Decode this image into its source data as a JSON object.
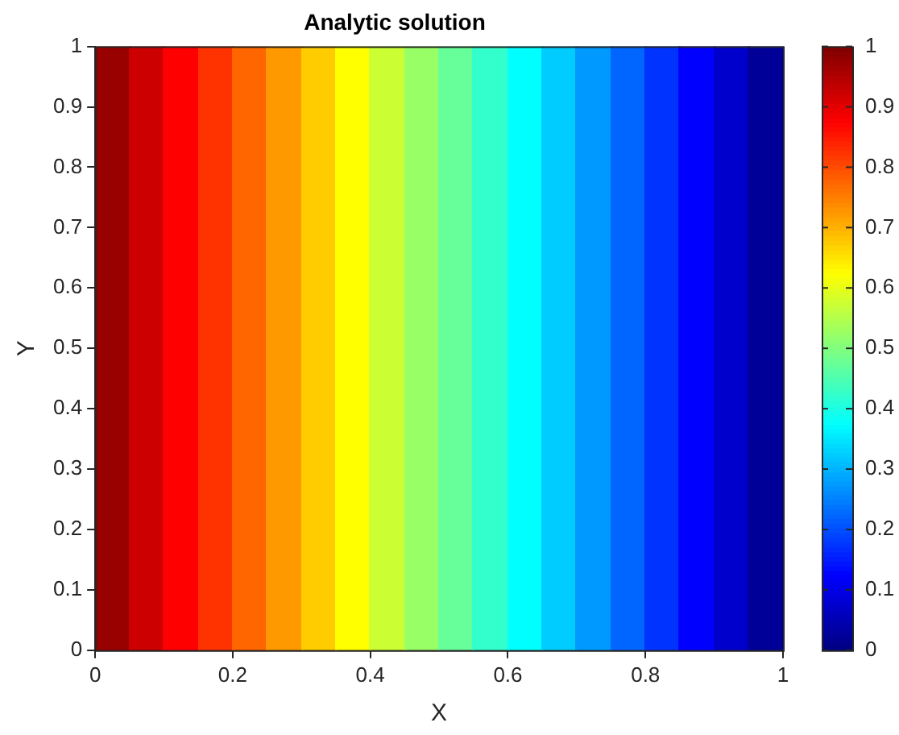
{
  "chart_data": {
    "type": "heatmap",
    "title": "Analytic solution",
    "xlabel": "X",
    "ylabel": "Y",
    "x": [
      0.025,
      0.075,
      0.125,
      0.175,
      0.225,
      0.275,
      0.325,
      0.375,
      0.425,
      0.475,
      0.525,
      0.575,
      0.625,
      0.675,
      0.725,
      0.775,
      0.825,
      0.875,
      0.925,
      0.975
    ],
    "cells": [
      [
        0.975,
        0.925,
        0.875,
        0.825,
        0.775,
        0.725,
        0.675,
        0.625,
        0.575,
        0.525,
        0.475,
        0.425,
        0.375,
        0.325,
        0.275,
        0.225,
        0.175,
        0.125,
        0.075,
        0.025
      ]
    ],
    "xlim": [
      0,
      1
    ],
    "ylim": [
      0,
      1
    ],
    "xticks": [
      0,
      0.2,
      0.4,
      0.6,
      0.8,
      1
    ],
    "yticks": [
      0,
      0.1,
      0.2,
      0.3,
      0.4,
      0.5,
      0.6,
      0.7,
      0.8,
      0.9,
      1
    ],
    "clim": [
      0,
      1
    ],
    "cticks": [
      0,
      0.1,
      0.2,
      0.3,
      0.4,
      0.5,
      0.6,
      0.7,
      0.8,
      0.9,
      1
    ],
    "grid": false
  }
}
